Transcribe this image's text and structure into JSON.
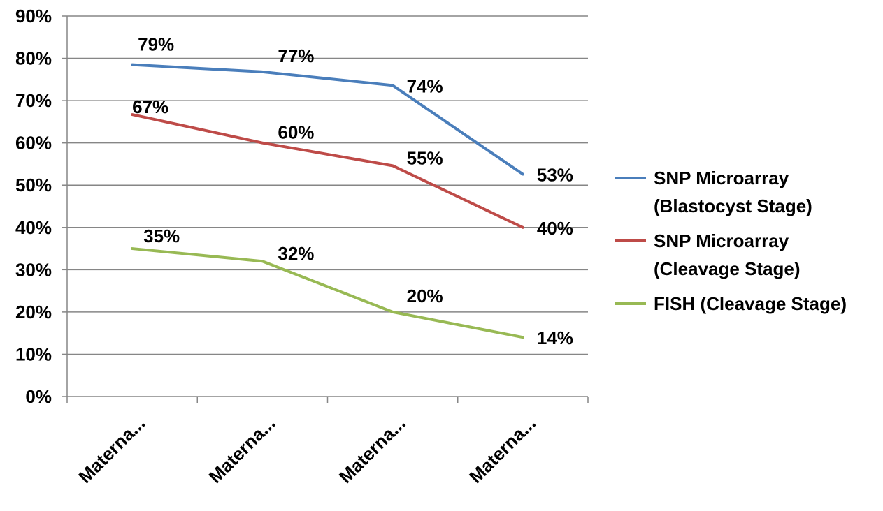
{
  "chart_data": {
    "type": "line",
    "title": "",
    "xlabel": "",
    "ylabel": "",
    "categories": [
      "Materna...",
      "Materna...",
      "Materna...",
      "Materna..."
    ],
    "ylim": [
      0,
      90
    ],
    "ytick_values": [
      0,
      10,
      20,
      30,
      40,
      50,
      60,
      70,
      80,
      90
    ],
    "ytick_labels": [
      "0%",
      "10%",
      "20%",
      "30%",
      "40%",
      "50%",
      "60%",
      "70%",
      "80%",
      "90%"
    ],
    "grid": true,
    "legend_position": "right",
    "series": [
      {
        "name": "SNP Microarray (Blastocyst  Stage)",
        "legend_lines": [
          "SNP Microarray",
          "(Blastocyst  Stage)"
        ],
        "color": "#4a7ebb",
        "values": [
          78.5,
          76.8,
          73.6,
          52.6
        ],
        "labels": [
          "79%",
          "77%",
          "74%",
          "53%"
        ]
      },
      {
        "name": "SNP Microarray (Cleavage Stage)",
        "legend_lines": [
          "SNP Microarray",
          "(Cleavage Stage)"
        ],
        "color": "#be4b48",
        "values": [
          66.7,
          60.0,
          54.6,
          40.0
        ],
        "labels": [
          "67%",
          "60%",
          "55%",
          "40%"
        ]
      },
      {
        "name": "FISH (Cleavage Stage)",
        "legend_lines": [
          "FISH (Cleavage Stage)"
        ],
        "color": "#98b954",
        "values": [
          35.0,
          32.0,
          20.0,
          14.0
        ],
        "labels": [
          "35%",
          "32%",
          "20%",
          "14%"
        ]
      }
    ]
  }
}
